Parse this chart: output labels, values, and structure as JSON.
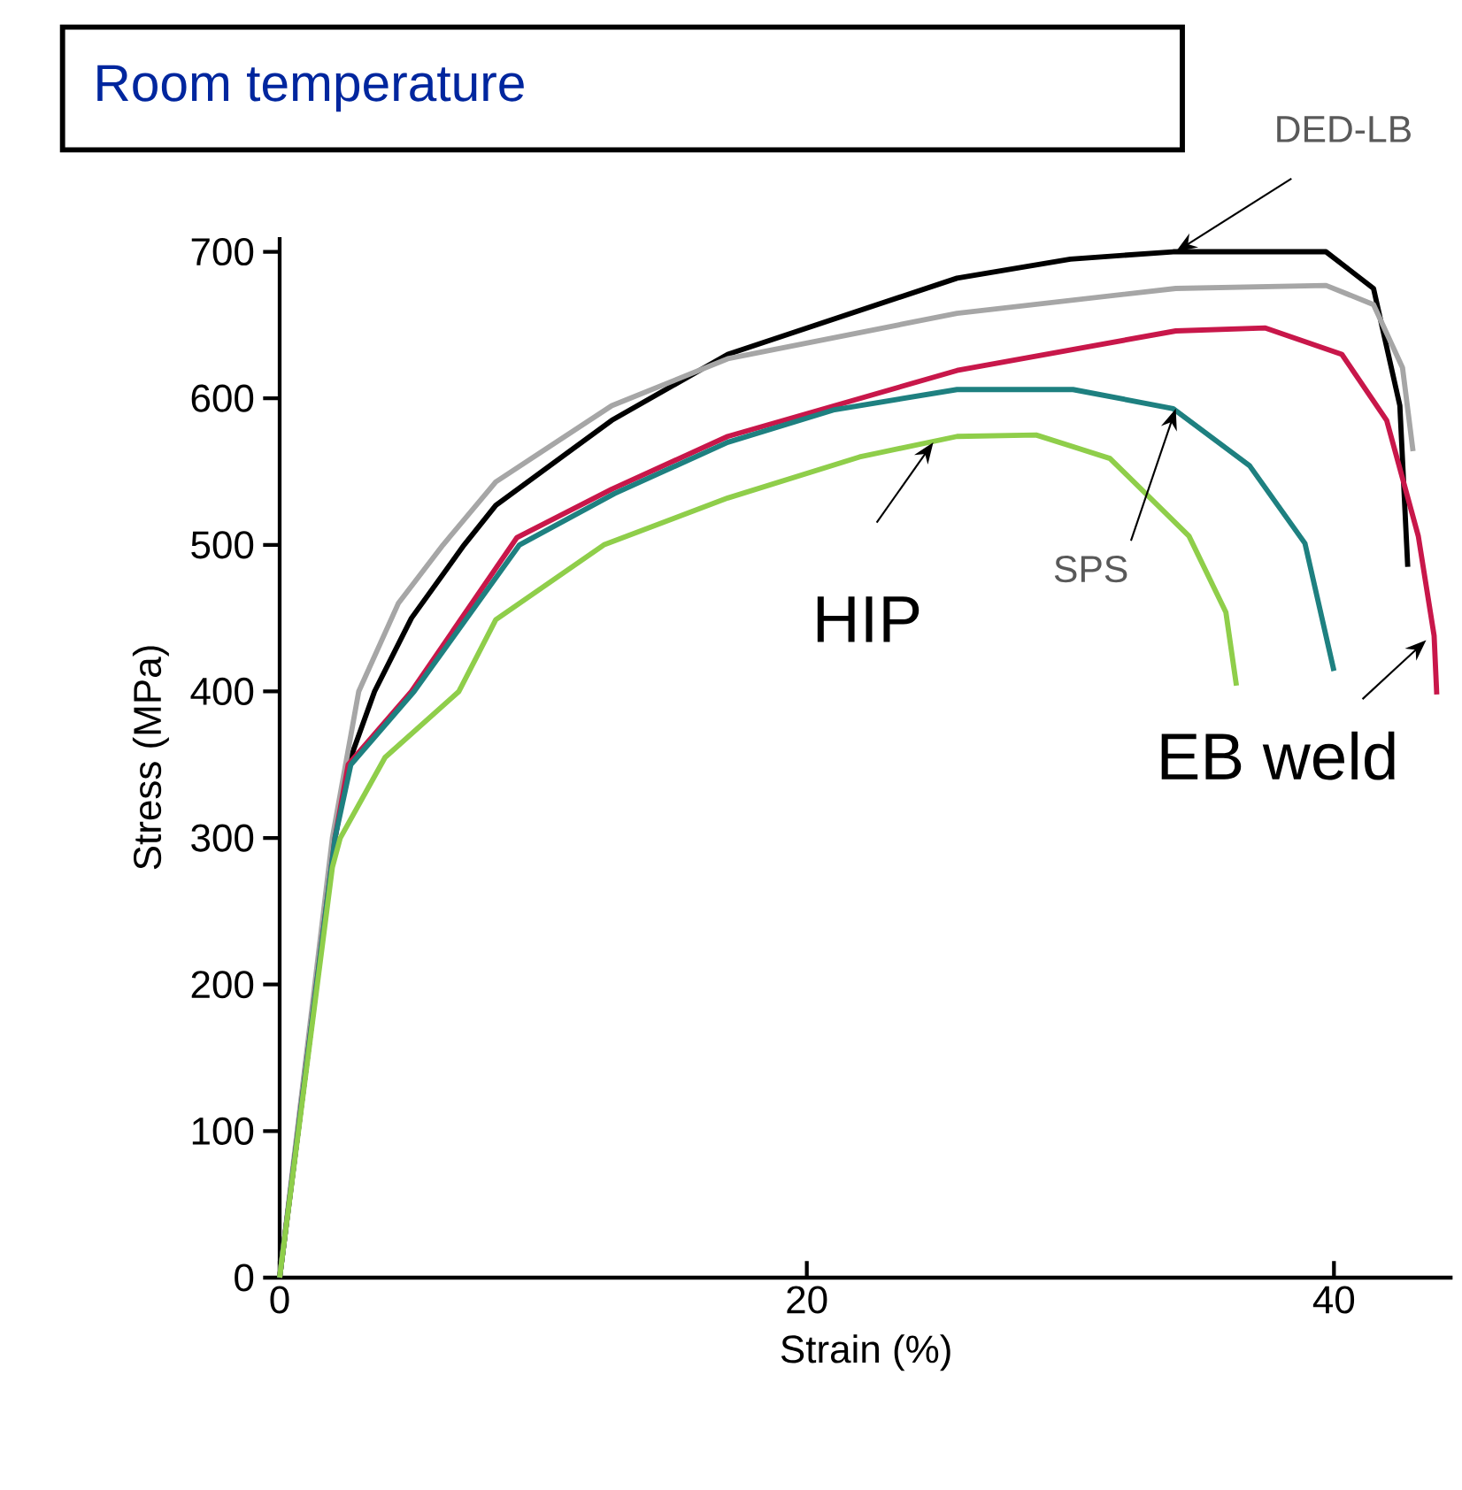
{
  "chart_data": {
    "type": "line",
    "title": "Room temperature",
    "xlabel": "Strain (%)",
    "ylabel": "Stress (MPa)",
    "xlim": [
      0,
      44.5
    ],
    "ylim": [
      0,
      710
    ],
    "xticks": [
      0,
      20,
      40
    ],
    "yticks": [
      0,
      100,
      200,
      300,
      400,
      500,
      600,
      700
    ],
    "marker": "none",
    "line_style": "solid",
    "series": [
      {
        "color": "#000000",
        "x": [
          0,
          2.1,
          2.6,
          3.6,
          5.0,
          7.0,
          8.2,
          12.6,
          17.0,
          25.7,
          30.0,
          33.9,
          39.7,
          41.5,
          42.5,
          42.8
        ],
        "values": [
          0,
          300,
          350,
          400,
          450,
          500,
          527,
          585,
          630,
          682,
          695,
          700,
          700,
          675,
          595,
          485
        ]
      },
      {
        "color": "#a6a6a6",
        "x": [
          0,
          2.0,
          3.0,
          4.5,
          6.2,
          8.2,
          12.6,
          17.0,
          25.7,
          34.0,
          39.7,
          41.5,
          42.6,
          43.0
        ],
        "values": [
          0,
          300,
          400,
          460,
          500,
          543,
          595,
          627,
          658,
          675,
          677,
          664,
          621,
          564
        ]
      },
      {
        "color": "#c8174a",
        "x": [
          0,
          2.1,
          2.6,
          5.0,
          9.0,
          12.6,
          17.0,
          25.7,
          34.0,
          37.4,
          40.3,
          42.0,
          43.2,
          43.8,
          43.9
        ],
        "values": [
          0,
          300,
          350,
          400,
          505,
          538,
          574,
          619,
          646,
          648,
          630,
          585,
          506,
          438,
          398
        ]
      },
      {
        "color": "#1e8080",
        "x": [
          0,
          2.1,
          2.7,
          5.1,
          9.1,
          12.7,
          17.0,
          21.0,
          25.7,
          30.1,
          33.9,
          36.8,
          38.9,
          40.0
        ],
        "values": [
          0,
          300,
          350,
          400,
          500,
          535,
          570,
          592,
          606,
          606,
          593,
          554,
          501,
          414
        ]
      },
      {
        "color": "#8fce4a",
        "x": [
          0,
          2.0,
          2.3,
          4.0,
          6.8,
          8.2,
          12.3,
          17.0,
          22.0,
          25.7,
          28.7,
          31.5,
          34.5,
          35.9,
          36.3
        ],
        "values": [
          0,
          280,
          300,
          355,
          400,
          449,
          500,
          532,
          560,
          574,
          575,
          559,
          506,
          454,
          404
        ]
      }
    ],
    "annotations": [
      {
        "text": "DED-LB",
        "x": 34,
        "y": 700
      },
      {
        "text": "HIP",
        "x": 24.8,
        "y": 570
      },
      {
        "text": "SPS",
        "x": 34,
        "y": 593
      },
      {
        "text": "EB weld",
        "x": 43.5,
        "y": 435
      }
    ]
  }
}
